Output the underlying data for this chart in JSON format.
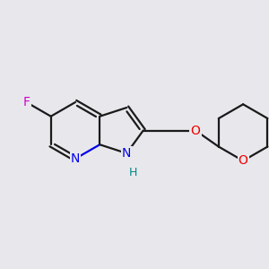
{
  "bg_color": "#e8e8ec",
  "bond_color": "#1a1a1a",
  "N_color": "#0000ee",
  "O_color": "#ee0000",
  "F_color": "#cc00cc",
  "NH_color": "#008888",
  "line_width": 1.6,
  "font_size": 10,
  "figsize": [
    3.0,
    3.0
  ],
  "dpi": 100,
  "xlim": [
    0,
    10
  ],
  "ylim": [
    0,
    10
  ]
}
